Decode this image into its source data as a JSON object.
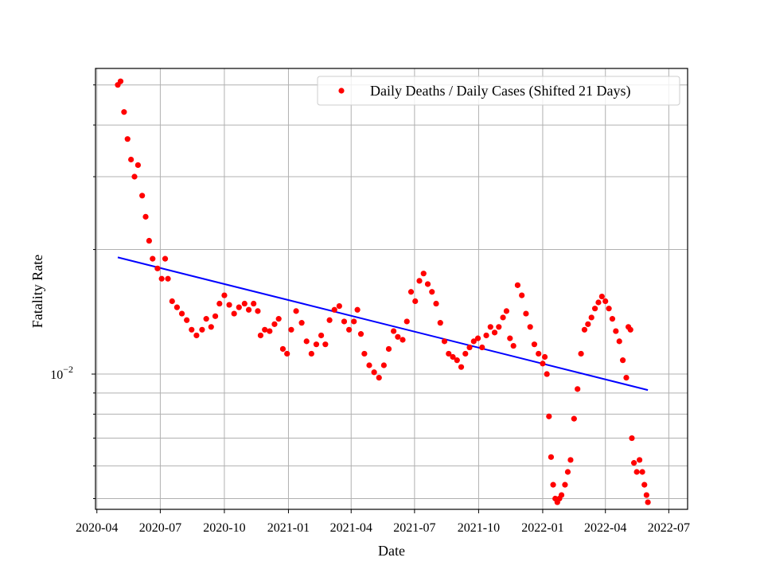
{
  "chart_data": {
    "type": "scatter",
    "xlabel": "Date",
    "ylabel": "Fatality Rate",
    "x_axis": {
      "type": "date",
      "range": [
        "2020-03-30",
        "2022-07-28"
      ],
      "ticks": [
        "2020-04-01",
        "2020-07-01",
        "2020-10-01",
        "2021-01-01",
        "2021-04-01",
        "2021-07-01",
        "2021-10-01",
        "2022-01-01",
        "2022-04-01",
        "2022-07-01"
      ],
      "tick_labels": [
        "2020-04",
        "2020-07",
        "2020-10",
        "2021-01",
        "2021-04",
        "2021-07",
        "2021-10",
        "2022-01",
        "2022-04",
        "2022-07"
      ]
    },
    "y_axis": {
      "scale": "log",
      "range": [
        0.00471,
        0.0548
      ],
      "major_tick_labels": [
        {
          "value": 0.01,
          "base": "10",
          "exponent": "−2"
        }
      ],
      "minor_ticks": [
        0.005,
        0.006,
        0.007,
        0.008,
        0.009,
        0.02,
        0.03,
        0.04,
        0.05
      ]
    },
    "grid": true,
    "legend": {
      "position": "top-right",
      "entries": [
        "Daily Deaths / Daily Cases (Shifted 21 Days)"
      ]
    },
    "series": [
      {
        "name": "Daily Deaths / Daily Cases (Shifted 21 Days)",
        "kind": "scatter",
        "color": "#ff0000",
        "points": [
          [
            "2020-05-01",
            0.05
          ],
          [
            "2020-05-05",
            0.051
          ],
          [
            "2020-05-10",
            0.043
          ],
          [
            "2020-05-15",
            0.037
          ],
          [
            "2020-05-20",
            0.033
          ],
          [
            "2020-05-25",
            0.03
          ],
          [
            "2020-05-30",
            0.032
          ],
          [
            "2020-06-05",
            0.027
          ],
          [
            "2020-06-10",
            0.024
          ],
          [
            "2020-06-15",
            0.021
          ],
          [
            "2020-06-20",
            0.019
          ],
          [
            "2020-06-27",
            0.018
          ],
          [
            "2020-07-03",
            0.017
          ],
          [
            "2020-07-08",
            0.019
          ],
          [
            "2020-07-12",
            0.017
          ],
          [
            "2020-07-18",
            0.015
          ],
          [
            "2020-07-25",
            0.0145
          ],
          [
            "2020-08-01",
            0.014
          ],
          [
            "2020-08-08",
            0.0135
          ],
          [
            "2020-08-15",
            0.0128
          ],
          [
            "2020-08-22",
            0.0124
          ],
          [
            "2020-08-30",
            0.0128
          ],
          [
            "2020-09-05",
            0.0136
          ],
          [
            "2020-09-12",
            0.013
          ],
          [
            "2020-09-18",
            0.0138
          ],
          [
            "2020-09-24",
            0.0148
          ],
          [
            "2020-10-01",
            0.0155
          ],
          [
            "2020-10-08",
            0.0147
          ],
          [
            "2020-10-15",
            0.014
          ],
          [
            "2020-10-22",
            0.0145
          ],
          [
            "2020-10-30",
            0.0148
          ],
          [
            "2020-11-05",
            0.0143
          ],
          [
            "2020-11-12",
            0.0148
          ],
          [
            "2020-11-18",
            0.0142
          ],
          [
            "2020-11-22",
            0.0124
          ],
          [
            "2020-11-28",
            0.0128
          ],
          [
            "2020-12-05",
            0.0127
          ],
          [
            "2020-12-12",
            0.0132
          ],
          [
            "2020-12-18",
            0.0136
          ],
          [
            "2020-12-24",
            0.0115
          ],
          [
            "2020-12-30",
            0.0112
          ],
          [
            "2021-01-05",
            0.0128
          ],
          [
            "2021-01-12",
            0.0142
          ],
          [
            "2021-01-20",
            0.0133
          ],
          [
            "2021-01-27",
            0.012
          ],
          [
            "2021-02-03",
            0.0112
          ],
          [
            "2021-02-10",
            0.0118
          ],
          [
            "2021-02-17",
            0.0124
          ],
          [
            "2021-02-23",
            0.0118
          ],
          [
            "2021-03-01",
            0.0135
          ],
          [
            "2021-03-08",
            0.0143
          ],
          [
            "2021-03-15",
            0.0146
          ],
          [
            "2021-03-22",
            0.0134
          ],
          [
            "2021-03-29",
            0.0128
          ],
          [
            "2021-04-05",
            0.0134
          ],
          [
            "2021-04-10",
            0.0143
          ],
          [
            "2021-04-15",
            0.0125
          ],
          [
            "2021-04-20",
            0.0112
          ],
          [
            "2021-04-27",
            0.0105
          ],
          [
            "2021-05-04",
            0.0101
          ],
          [
            "2021-05-11",
            0.0098
          ],
          [
            "2021-05-18",
            0.0105
          ],
          [
            "2021-05-25",
            0.0115
          ],
          [
            "2021-06-01",
            0.0127
          ],
          [
            "2021-06-07",
            0.0123
          ],
          [
            "2021-06-14",
            0.0121
          ],
          [
            "2021-06-20",
            0.0134
          ],
          [
            "2021-06-26",
            0.0158
          ],
          [
            "2021-07-02",
            0.015
          ],
          [
            "2021-07-08",
            0.0168
          ],
          [
            "2021-07-14",
            0.0175
          ],
          [
            "2021-07-20",
            0.0165
          ],
          [
            "2021-07-26",
            0.0158
          ],
          [
            "2021-08-01",
            0.0148
          ],
          [
            "2021-08-07",
            0.0133
          ],
          [
            "2021-08-13",
            0.012
          ],
          [
            "2021-08-19",
            0.0112
          ],
          [
            "2021-08-25",
            0.011
          ],
          [
            "2021-08-31",
            0.0108
          ],
          [
            "2021-09-06",
            0.0104
          ],
          [
            "2021-09-12",
            0.0112
          ],
          [
            "2021-09-18",
            0.0116
          ],
          [
            "2021-09-24",
            0.012
          ],
          [
            "2021-09-30",
            0.0122
          ],
          [
            "2021-10-06",
            0.0116
          ],
          [
            "2021-10-12",
            0.0124
          ],
          [
            "2021-10-18",
            0.013
          ],
          [
            "2021-10-24",
            0.0126
          ],
          [
            "2021-10-30",
            0.013
          ],
          [
            "2021-11-05",
            0.0137
          ],
          [
            "2021-11-10",
            0.0142
          ],
          [
            "2021-11-15",
            0.0122
          ],
          [
            "2021-11-20",
            0.0117
          ],
          [
            "2021-11-26",
            0.0164
          ],
          [
            "2021-12-02",
            0.0155
          ],
          [
            "2021-12-08",
            0.014
          ],
          [
            "2021-12-14",
            0.013
          ],
          [
            "2021-12-20",
            0.0118
          ],
          [
            "2021-12-26",
            0.0112
          ],
          [
            "2022-01-01",
            0.0106
          ],
          [
            "2022-01-04",
            0.011
          ],
          [
            "2022-01-07",
            0.01
          ],
          [
            "2022-01-10",
            0.0079
          ],
          [
            "2022-01-13",
            0.0063
          ],
          [
            "2022-01-16",
            0.0054
          ],
          [
            "2022-01-19",
            0.005
          ],
          [
            "2022-01-22",
            0.0049
          ],
          [
            "2022-01-25",
            0.005
          ],
          [
            "2022-01-28",
            0.0051
          ],
          [
            "2022-02-02",
            0.0054
          ],
          [
            "2022-02-06",
            0.0058
          ],
          [
            "2022-02-10",
            0.0062
          ],
          [
            "2022-02-15",
            0.0078
          ],
          [
            "2022-02-20",
            0.0092
          ],
          [
            "2022-02-25",
            0.0112
          ],
          [
            "2022-03-02",
            0.0128
          ],
          [
            "2022-03-07",
            0.0132
          ],
          [
            "2022-03-12",
            0.0137
          ],
          [
            "2022-03-17",
            0.0144
          ],
          [
            "2022-03-22",
            0.0149
          ],
          [
            "2022-03-27",
            0.0154
          ],
          [
            "2022-04-01",
            0.015
          ],
          [
            "2022-04-06",
            0.0144
          ],
          [
            "2022-04-11",
            0.0136
          ],
          [
            "2022-04-16",
            0.0127
          ],
          [
            "2022-04-21",
            0.012
          ],
          [
            "2022-04-26",
            0.0108
          ],
          [
            "2022-05-01",
            0.0098
          ],
          [
            "2022-05-04",
            0.013
          ],
          [
            "2022-05-07",
            0.0128
          ],
          [
            "2022-05-09",
            0.007
          ],
          [
            "2022-05-12",
            0.0061
          ],
          [
            "2022-05-16",
            0.0058
          ],
          [
            "2022-05-20",
            0.0062
          ],
          [
            "2022-05-24",
            0.0058
          ],
          [
            "2022-05-27",
            0.0054
          ],
          [
            "2022-05-30",
            0.0051
          ],
          [
            "2022-06-01",
            0.0049
          ]
        ]
      },
      {
        "kind": "trend-line",
        "color": "#0000ff",
        "points": [
          [
            "2020-05-01",
            0.01915
          ],
          [
            "2022-06-01",
            0.00915
          ]
        ]
      }
    ]
  }
}
